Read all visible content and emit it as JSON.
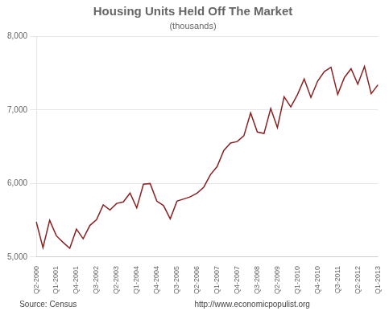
{
  "chart_data": {
    "type": "line",
    "title": "Housing Units Held Off The Market",
    "subtitle": "(thousands)",
    "annotations": [
      "Source: Census",
      "http://www.economicpopulist.org"
    ],
    "color": "#8B2020",
    "categories": [
      "Q2-2000",
      null,
      null,
      "Q1-2001",
      null,
      null,
      "Q4-2001",
      null,
      null,
      "Q3-2002",
      null,
      null,
      "Q2-2003",
      null,
      null,
      "Q1-2004",
      null,
      null,
      "Q4-2004",
      null,
      null,
      "Q3-2005",
      null,
      null,
      "Q2-2006",
      null,
      null,
      "Q1-2007",
      null,
      null,
      "Q4-2007",
      null,
      null,
      "Q3-2008",
      null,
      null,
      "Q2-2009",
      null,
      null,
      "Q1-2010",
      null,
      null,
      "Q4-2010",
      null,
      null,
      "Q3-2011",
      null,
      null,
      "Q2-2012",
      null,
      null,
      "Q1-2013"
    ],
    "values": [
      5480,
      5130,
      5500,
      5290,
      5200,
      5120,
      5380,
      5250,
      5430,
      5510,
      5710,
      5640,
      5730,
      5750,
      5870,
      5670,
      5990,
      6000,
      5760,
      5700,
      5520,
      5760,
      5790,
      5820,
      5870,
      5950,
      6120,
      6230,
      6450,
      6550,
      6570,
      6650,
      6960,
      6700,
      6680,
      7020,
      6760,
      7180,
      7040,
      7210,
      7420,
      7170,
      7390,
      7520,
      7580,
      7210,
      7440,
      7560,
      7350,
      7590,
      7220,
      7340
    ],
    "ylim": [
      5000,
      8000
    ],
    "yticks": [
      {
        "value": 5000,
        "label": "5,000"
      },
      {
        "value": 6000,
        "label": "6,000"
      },
      {
        "value": 7000,
        "label": "7,000"
      },
      {
        "value": 8000,
        "label": "8,000"
      }
    ],
    "grid": true
  }
}
